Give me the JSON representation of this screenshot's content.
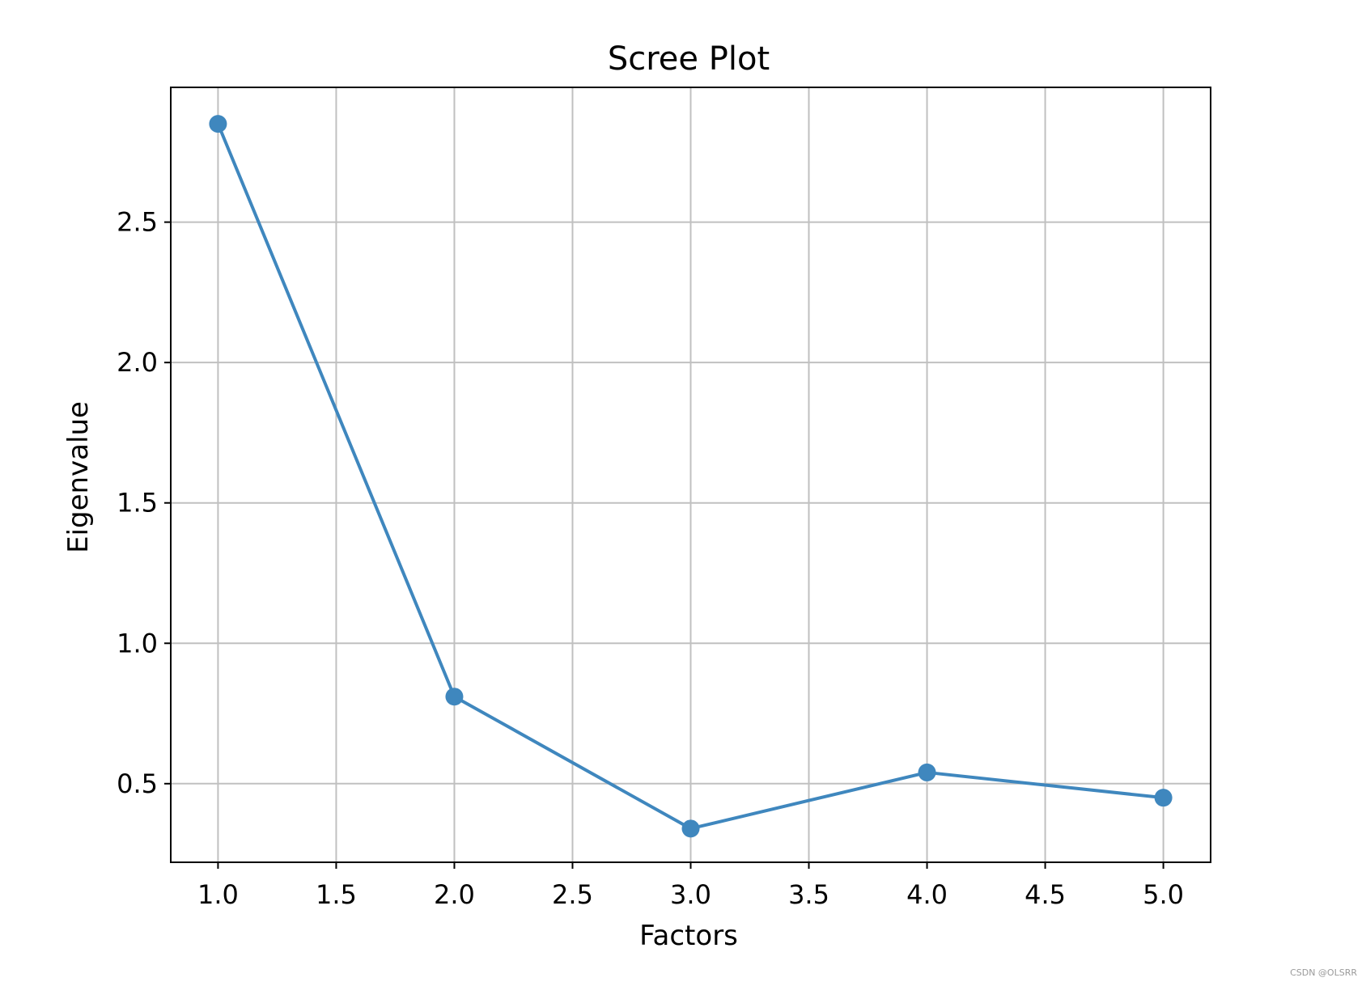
{
  "chart_data": {
    "type": "line",
    "title": "Scree Plot",
    "xlabel": "Factors",
    "ylabel": "Eigenvalue",
    "series": [
      {
        "x": [
          1.0,
          2.0,
          3.0,
          4.0,
          5.0
        ],
        "values": [
          2.85,
          0.81,
          0.34,
          0.54,
          0.45
        ],
        "color": "#3f87be",
        "markers": true
      }
    ],
    "xlim": [
      0.8,
      5.2
    ],
    "ylim": [
      0.22,
      2.98
    ],
    "xticks": [
      1.0,
      1.5,
      2.0,
      2.5,
      3.0,
      3.5,
      4.0,
      4.5,
      5.0
    ],
    "xtick_labels": [
      "1.0",
      "1.5",
      "2.0",
      "2.5",
      "3.0",
      "3.5",
      "4.0",
      "4.5",
      "5.0"
    ],
    "yticks": [
      0.5,
      1.0,
      1.5,
      2.0,
      2.5
    ],
    "ytick_labels": [
      "0.5",
      "1.0",
      "1.5",
      "2.0",
      "2.5"
    ],
    "grid": true,
    "grid_color": "#c0c0c0",
    "watermark": "CSDN @OLSRR"
  }
}
